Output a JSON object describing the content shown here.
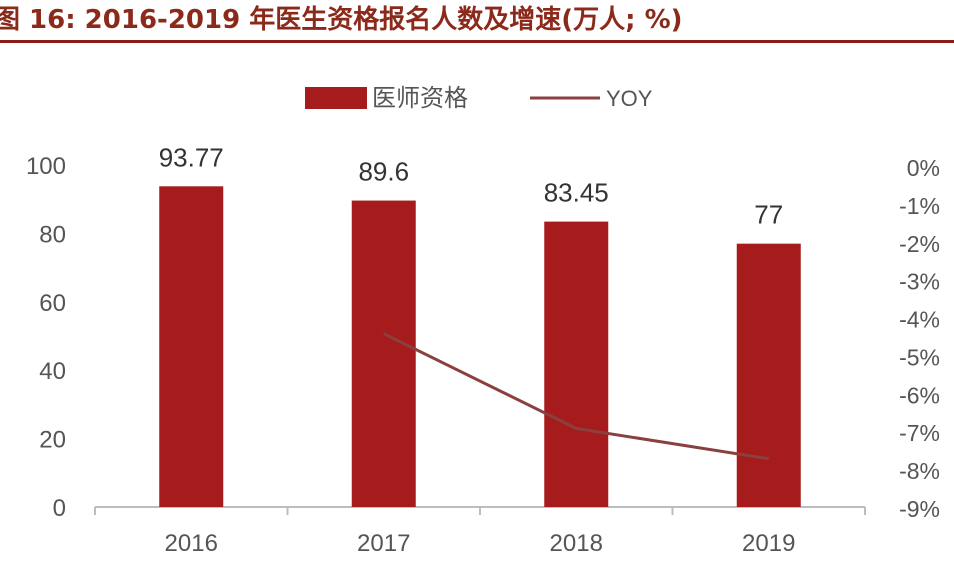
{
  "chart_data": {
    "type": "bar",
    "title": "图 16: 2016-2019 年医生资格报名人数及增速(万人; %)",
    "categories": [
      "2016",
      "2017",
      "2018",
      "2019"
    ],
    "series": [
      {
        "name": "医师资格",
        "type": "bar",
        "axis": "left",
        "values": [
          93.77,
          89.6,
          83.45,
          77
        ]
      },
      {
        "name": "YOY",
        "type": "line",
        "axis": "right",
        "values": [
          null,
          -4.4,
          -6.9,
          -7.7
        ]
      }
    ],
    "data_labels": [
      "93.77",
      "89.6",
      "83.45",
      "77"
    ],
    "y_left": {
      "ticks": [
        "0",
        "20",
        "40",
        "60",
        "80",
        "100"
      ],
      "ylim": [
        0,
        100
      ]
    },
    "y_right": {
      "ticks": [
        "0%",
        "-1%",
        "-2%",
        "-3%",
        "-4%",
        "-5%",
        "-6%",
        "-7%",
        "-8%",
        "-9%"
      ],
      "ylim": [
        -9,
        0
      ]
    },
    "legend": {
      "position": "top-center",
      "items": [
        "医师资格",
        "YOY"
      ]
    },
    "grid": false,
    "colors": {
      "bar": "#a61c1c",
      "line": "#8b4040",
      "axis_text": "#555555",
      "title": "#8b2a1a"
    }
  }
}
